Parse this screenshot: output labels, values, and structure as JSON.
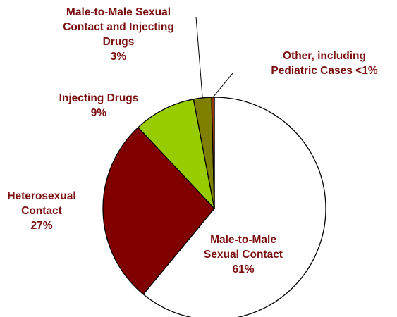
{
  "chart_data": {
    "type": "pie",
    "slices": [
      {
        "label_lines": [
          "Male-to-Male",
          "Sexual Contact"
        ],
        "pct_text": "61%",
        "value": 61,
        "color": "#ffffff"
      },
      {
        "label_lines": [
          "Heterosexual",
          "Contact"
        ],
        "pct_text": "27%",
        "value": 27,
        "color": "#800000"
      },
      {
        "label_lines": [
          "Injecting Drugs"
        ],
        "pct_text": "9%",
        "value": 9,
        "color": "#99cc00"
      },
      {
        "label_lines": [
          "Male-to-Male Sexual",
          "Contact and Injecting",
          "Drugs"
        ],
        "pct_text": "3%",
        "value": 2.6,
        "color": "#808000"
      },
      {
        "label_lines": [
          "Other, including",
          "Pediatric Cases <1%"
        ],
        "pct_text": "",
        "value": 0.4,
        "color": "#993300"
      }
    ]
  }
}
